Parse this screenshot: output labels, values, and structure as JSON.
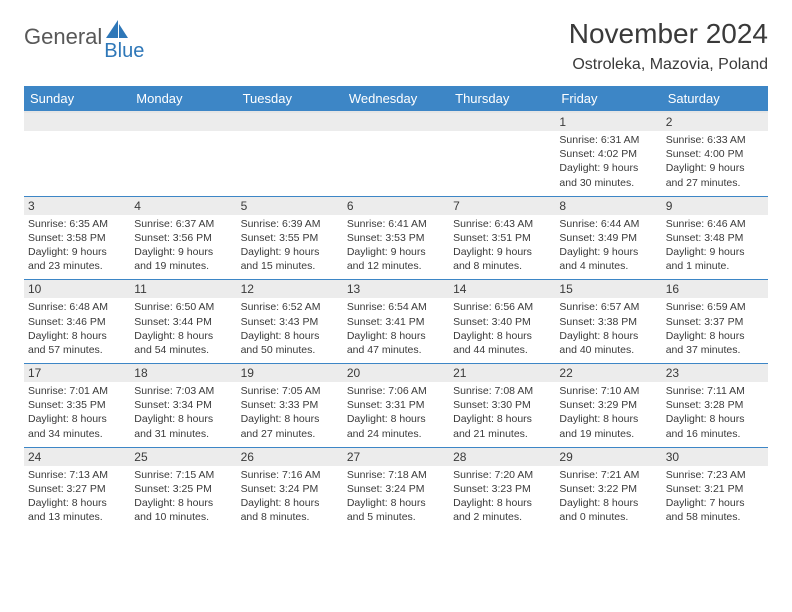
{
  "brand": {
    "main": "General",
    "sub": "Blue"
  },
  "title": "November 2024",
  "location": "Ostroleka, Mazovia, Poland",
  "colors": {
    "header_bg": "#3d86c6",
    "header_fg": "#ffffff",
    "daynum_bg": "#ececec",
    "text": "#3a3a3a",
    "row_border": "#3d86c6",
    "logo_accent": "#2e77b8"
  },
  "days_of_week": [
    "Sunday",
    "Monday",
    "Tuesday",
    "Wednesday",
    "Thursday",
    "Friday",
    "Saturday"
  ],
  "weeks": [
    [
      {
        "num": "",
        "sunrise": "",
        "sunset": "",
        "daylight": ""
      },
      {
        "num": "",
        "sunrise": "",
        "sunset": "",
        "daylight": ""
      },
      {
        "num": "",
        "sunrise": "",
        "sunset": "",
        "daylight": ""
      },
      {
        "num": "",
        "sunrise": "",
        "sunset": "",
        "daylight": ""
      },
      {
        "num": "",
        "sunrise": "",
        "sunset": "",
        "daylight": ""
      },
      {
        "num": "1",
        "sunrise": "Sunrise: 6:31 AM",
        "sunset": "Sunset: 4:02 PM",
        "daylight": "Daylight: 9 hours and 30 minutes."
      },
      {
        "num": "2",
        "sunrise": "Sunrise: 6:33 AM",
        "sunset": "Sunset: 4:00 PM",
        "daylight": "Daylight: 9 hours and 27 minutes."
      }
    ],
    [
      {
        "num": "3",
        "sunrise": "Sunrise: 6:35 AM",
        "sunset": "Sunset: 3:58 PM",
        "daylight": "Daylight: 9 hours and 23 minutes."
      },
      {
        "num": "4",
        "sunrise": "Sunrise: 6:37 AM",
        "sunset": "Sunset: 3:56 PM",
        "daylight": "Daylight: 9 hours and 19 minutes."
      },
      {
        "num": "5",
        "sunrise": "Sunrise: 6:39 AM",
        "sunset": "Sunset: 3:55 PM",
        "daylight": "Daylight: 9 hours and 15 minutes."
      },
      {
        "num": "6",
        "sunrise": "Sunrise: 6:41 AM",
        "sunset": "Sunset: 3:53 PM",
        "daylight": "Daylight: 9 hours and 12 minutes."
      },
      {
        "num": "7",
        "sunrise": "Sunrise: 6:43 AM",
        "sunset": "Sunset: 3:51 PM",
        "daylight": "Daylight: 9 hours and 8 minutes."
      },
      {
        "num": "8",
        "sunrise": "Sunrise: 6:44 AM",
        "sunset": "Sunset: 3:49 PM",
        "daylight": "Daylight: 9 hours and 4 minutes."
      },
      {
        "num": "9",
        "sunrise": "Sunrise: 6:46 AM",
        "sunset": "Sunset: 3:48 PM",
        "daylight": "Daylight: 9 hours and 1 minute."
      }
    ],
    [
      {
        "num": "10",
        "sunrise": "Sunrise: 6:48 AM",
        "sunset": "Sunset: 3:46 PM",
        "daylight": "Daylight: 8 hours and 57 minutes."
      },
      {
        "num": "11",
        "sunrise": "Sunrise: 6:50 AM",
        "sunset": "Sunset: 3:44 PM",
        "daylight": "Daylight: 8 hours and 54 minutes."
      },
      {
        "num": "12",
        "sunrise": "Sunrise: 6:52 AM",
        "sunset": "Sunset: 3:43 PM",
        "daylight": "Daylight: 8 hours and 50 minutes."
      },
      {
        "num": "13",
        "sunrise": "Sunrise: 6:54 AM",
        "sunset": "Sunset: 3:41 PM",
        "daylight": "Daylight: 8 hours and 47 minutes."
      },
      {
        "num": "14",
        "sunrise": "Sunrise: 6:56 AM",
        "sunset": "Sunset: 3:40 PM",
        "daylight": "Daylight: 8 hours and 44 minutes."
      },
      {
        "num": "15",
        "sunrise": "Sunrise: 6:57 AM",
        "sunset": "Sunset: 3:38 PM",
        "daylight": "Daylight: 8 hours and 40 minutes."
      },
      {
        "num": "16",
        "sunrise": "Sunrise: 6:59 AM",
        "sunset": "Sunset: 3:37 PM",
        "daylight": "Daylight: 8 hours and 37 minutes."
      }
    ],
    [
      {
        "num": "17",
        "sunrise": "Sunrise: 7:01 AM",
        "sunset": "Sunset: 3:35 PM",
        "daylight": "Daylight: 8 hours and 34 minutes."
      },
      {
        "num": "18",
        "sunrise": "Sunrise: 7:03 AM",
        "sunset": "Sunset: 3:34 PM",
        "daylight": "Daylight: 8 hours and 31 minutes."
      },
      {
        "num": "19",
        "sunrise": "Sunrise: 7:05 AM",
        "sunset": "Sunset: 3:33 PM",
        "daylight": "Daylight: 8 hours and 27 minutes."
      },
      {
        "num": "20",
        "sunrise": "Sunrise: 7:06 AM",
        "sunset": "Sunset: 3:31 PM",
        "daylight": "Daylight: 8 hours and 24 minutes."
      },
      {
        "num": "21",
        "sunrise": "Sunrise: 7:08 AM",
        "sunset": "Sunset: 3:30 PM",
        "daylight": "Daylight: 8 hours and 21 minutes."
      },
      {
        "num": "22",
        "sunrise": "Sunrise: 7:10 AM",
        "sunset": "Sunset: 3:29 PM",
        "daylight": "Daylight: 8 hours and 19 minutes."
      },
      {
        "num": "23",
        "sunrise": "Sunrise: 7:11 AM",
        "sunset": "Sunset: 3:28 PM",
        "daylight": "Daylight: 8 hours and 16 minutes."
      }
    ],
    [
      {
        "num": "24",
        "sunrise": "Sunrise: 7:13 AM",
        "sunset": "Sunset: 3:27 PM",
        "daylight": "Daylight: 8 hours and 13 minutes."
      },
      {
        "num": "25",
        "sunrise": "Sunrise: 7:15 AM",
        "sunset": "Sunset: 3:25 PM",
        "daylight": "Daylight: 8 hours and 10 minutes."
      },
      {
        "num": "26",
        "sunrise": "Sunrise: 7:16 AM",
        "sunset": "Sunset: 3:24 PM",
        "daylight": "Daylight: 8 hours and 8 minutes."
      },
      {
        "num": "27",
        "sunrise": "Sunrise: 7:18 AM",
        "sunset": "Sunset: 3:24 PM",
        "daylight": "Daylight: 8 hours and 5 minutes."
      },
      {
        "num": "28",
        "sunrise": "Sunrise: 7:20 AM",
        "sunset": "Sunset: 3:23 PM",
        "daylight": "Daylight: 8 hours and 2 minutes."
      },
      {
        "num": "29",
        "sunrise": "Sunrise: 7:21 AM",
        "sunset": "Sunset: 3:22 PM",
        "daylight": "Daylight: 8 hours and 0 minutes."
      },
      {
        "num": "30",
        "sunrise": "Sunrise: 7:23 AM",
        "sunset": "Sunset: 3:21 PM",
        "daylight": "Daylight: 7 hours and 58 minutes."
      }
    ]
  ]
}
